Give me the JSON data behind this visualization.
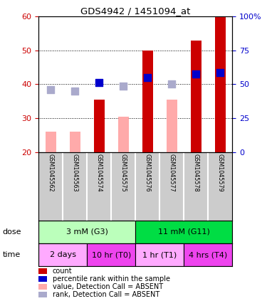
{
  "title": "GDS4942 / 1451094_at",
  "samples": [
    "GSM1045562",
    "GSM1045563",
    "GSM1045574",
    "GSM1045575",
    "GSM1045576",
    "GSM1045577",
    "GSM1045578",
    "GSM1045579"
  ],
  "count_values": [
    null,
    null,
    35.5,
    null,
    50.0,
    null,
    53.0,
    60.0
  ],
  "count_absent_values": [
    26.0,
    26.0,
    null,
    30.5,
    null,
    35.5,
    null,
    null
  ],
  "rank_values": [
    null,
    null,
    40.5,
    null,
    42.0,
    null,
    43.0,
    43.5
  ],
  "rank_absent_values": [
    38.5,
    38.0,
    null,
    39.5,
    null,
    40.0,
    null,
    null
  ],
  "ylim_left": [
    20,
    60
  ],
  "ylim_right": [
    0,
    100
  ],
  "yticks_left": [
    20,
    30,
    40,
    50,
    60
  ],
  "yticks_right": [
    0,
    25,
    50,
    75,
    100
  ],
  "ytick_labels_right": [
    "0",
    "25",
    "50",
    "75",
    "100%"
  ],
  "color_count": "#cc0000",
  "color_count_absent": "#ffaaaa",
  "color_rank": "#0000cc",
  "color_rank_absent": "#aaaacc",
  "dose_groups": [
    {
      "label": "3 mM (G3)",
      "start": 0,
      "end": 4,
      "color": "#bbffbb"
    },
    {
      "label": "11 mM (G11)",
      "start": 4,
      "end": 8,
      "color": "#00dd44"
    }
  ],
  "time_groups": [
    {
      "label": "2 days",
      "start": 0,
      "end": 2,
      "color": "#ffaaff"
    },
    {
      "label": "10 hr (T0)",
      "start": 2,
      "end": 4,
      "color": "#ee44ee"
    },
    {
      "label": "1 hr (T1)",
      "start": 4,
      "end": 6,
      "color": "#ffaaff"
    },
    {
      "label": "4 hrs (T4)",
      "start": 6,
      "end": 8,
      "color": "#ee44ee"
    }
  ],
  "legend_items": [
    {
      "label": "count",
      "color": "#cc0000"
    },
    {
      "label": "percentile rank within the sample",
      "color": "#0000cc"
    },
    {
      "label": "value, Detection Call = ABSENT",
      "color": "#ffaaaa"
    },
    {
      "label": "rank, Detection Call = ABSENT",
      "color": "#aaaacc"
    }
  ],
  "bar_width": 0.45,
  "dot_size": 50,
  "background_color": "#ffffff",
  "axis_label_color_left": "#cc0000",
  "axis_label_color_right": "#0000cc",
  "sample_bg_color": "#cccccc",
  "sample_border_color": "#ffffff"
}
